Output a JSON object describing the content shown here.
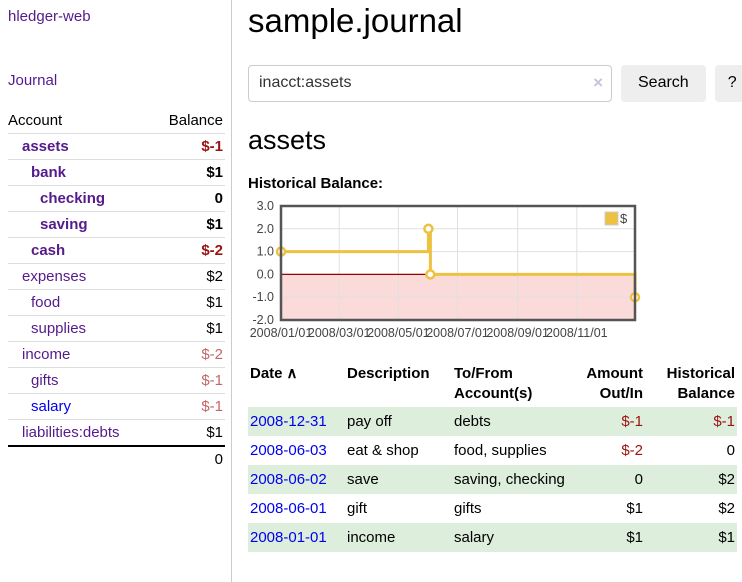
{
  "sidebar": {
    "brand": "hledger-web",
    "nav": {
      "journal": "Journal"
    },
    "accounts_table": {
      "headers": {
        "account": "Account",
        "balance": "Balance"
      },
      "rows": [
        {
          "name": "assets",
          "balance": "$-1",
          "depth": 1
        },
        {
          "name": "bank",
          "balance": "$1",
          "depth": 2
        },
        {
          "name": "checking",
          "balance": "0",
          "depth": 3
        },
        {
          "name": "saving",
          "balance": "$1",
          "depth": 3
        },
        {
          "name": "cash",
          "balance": "$-2",
          "depth": 2
        },
        {
          "name": "expenses",
          "balance": "$2",
          "depth": 1
        },
        {
          "name": "food",
          "balance": "$1",
          "depth": 2
        },
        {
          "name": "supplies",
          "balance": "$1",
          "depth": 2
        },
        {
          "name": "income",
          "balance": "$-2",
          "depth": 1
        },
        {
          "name": "gifts",
          "balance": "$-1",
          "depth": 2
        },
        {
          "name": "salary",
          "balance": "$-1",
          "depth": 2
        },
        {
          "name": "liabilities:debts",
          "balance": "$1",
          "depth": 1
        }
      ],
      "total": "0"
    }
  },
  "header": {
    "title": "sample.journal"
  },
  "search": {
    "value": "inacct:assets",
    "clear_icon": "×",
    "button_label": "Search",
    "help_label": "?"
  },
  "main": {
    "account_heading": "assets",
    "chart_title": "Historical Balance:"
  },
  "chart_data": {
    "type": "line",
    "step": true,
    "title": "Historical Balance",
    "series": [
      {
        "name": "$",
        "color": "#edc240",
        "points": [
          [
            "2008/01/01",
            1
          ],
          [
            "2008/06/01",
            2
          ],
          [
            "2008/06/03",
            0
          ],
          [
            "2008/12/31",
            -1
          ]
        ]
      }
    ],
    "x_range": [
      "2008/01/01",
      "2008/12/31"
    ],
    "ylim": [
      -2,
      3
    ],
    "y_ticks": [
      {
        "v": 3,
        "label": "3.0"
      },
      {
        "v": 2,
        "label": "2.0"
      },
      {
        "v": 1,
        "label": "1.0"
      },
      {
        "v": 0,
        "label": "0.0"
      },
      {
        "v": -1,
        "label": "-1.0"
      },
      {
        "v": -2,
        "label": "-2.0"
      }
    ],
    "x_ticks": [
      "2008/01/01",
      "2008/03/01",
      "2008/05/01",
      "2008/07/01",
      "2008/09/01",
      "2008/11/01"
    ],
    "legend": {
      "label": "$",
      "position": "top-right"
    },
    "grid": true,
    "colors": {
      "negative_region": "#fbdada",
      "zero_line": "#990000",
      "border": "#545454",
      "gridline": "#e0e0e0",
      "tick_text": "#444444",
      "marker_fill": "#ffffff"
    }
  },
  "register_table": {
    "headers": {
      "date": "Date",
      "sort_icon": "∧",
      "description": "Description",
      "accounts": "To/From Account(s)",
      "amount": "Amount Out/In",
      "balance": "Historical Balance"
    },
    "rows": [
      {
        "date": "2008-12-31",
        "description": "pay off",
        "accounts": "debts",
        "amount": "$-1",
        "balance": "$-1"
      },
      {
        "date": "2008-06-03",
        "description": "eat & shop",
        "accounts": "food, supplies",
        "amount": "$-2",
        "balance": "0"
      },
      {
        "date": "2008-06-02",
        "description": "save",
        "accounts": "saving, checking",
        "amount": "0",
        "balance": "$2"
      },
      {
        "date": "2008-06-01",
        "description": "gift",
        "accounts": "gifts",
        "amount": "$1",
        "balance": "$2"
      },
      {
        "date": "2008-01-01",
        "description": "income",
        "accounts": "salary",
        "amount": "$1",
        "balance": "$1"
      }
    ]
  }
}
